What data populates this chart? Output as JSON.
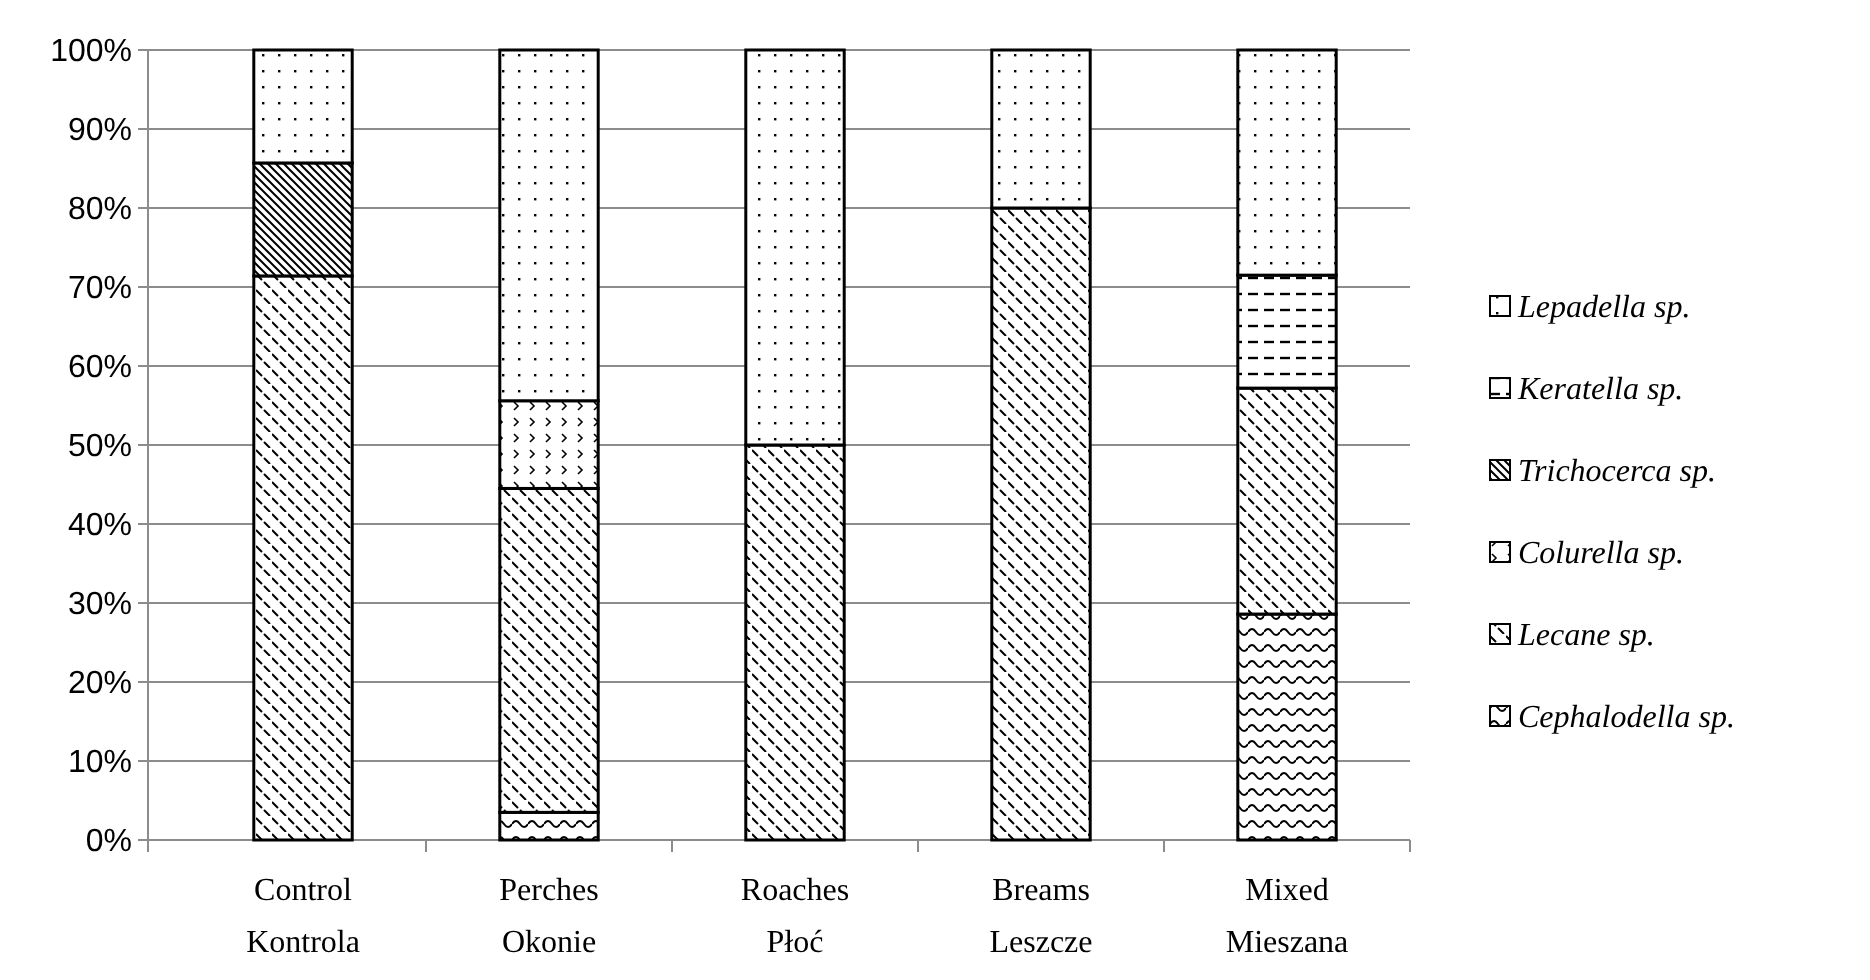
{
  "chart_data": {
    "type": "bar",
    "stacked": true,
    "categories": [
      "Control Kontrola",
      "Perches Okonie",
      "Roaches Płoć",
      "Breams Leszcze",
      "Mixed Mieszana"
    ],
    "series": [
      {
        "name": "Cephalodella sp.",
        "color": "#000000",
        "values": [
          0,
          3.5,
          0,
          0,
          28.6
        ]
      },
      {
        "name": "Lecane sp.",
        "color": "#000000",
        "values": [
          71.4,
          41,
          50,
          80,
          28.6
        ]
      },
      {
        "name": "Colurella sp.",
        "color": "#000000",
        "values": [
          0,
          11.1,
          0,
          0,
          0
        ]
      },
      {
        "name": "Trichocerca sp.",
        "color": "#000000",
        "values": [
          14.3,
          0,
          0,
          0,
          0
        ]
      },
      {
        "name": "Keratella sp.",
        "color": "#000000",
        "values": [
          0,
          0,
          0,
          0,
          14.3
        ]
      },
      {
        "name": "Lepadella sp.",
        "color": "#000000",
        "values": [
          14.3,
          44.4,
          50,
          20,
          28.5
        ]
      }
    ],
    "ylim": [
      0,
      100
    ],
    "yticks": [
      {
        "value": 0,
        "label": "0%"
      },
      {
        "value": 10,
        "label": "10%"
      },
      {
        "value": 20,
        "label": "20%"
      },
      {
        "value": 30,
        "label": "30%"
      },
      {
        "value": 40,
        "label": "40%"
      },
      {
        "value": 50,
        "label": "50%"
      },
      {
        "value": 60,
        "label": "60%"
      },
      {
        "value": 70,
        "label": "70%"
      },
      {
        "value": 80,
        "label": "80%"
      },
      {
        "value": 90,
        "label": "90%"
      },
      {
        "value": 100,
        "label": "100%"
      }
    ],
    "grid": "y",
    "legend": "right"
  }
}
